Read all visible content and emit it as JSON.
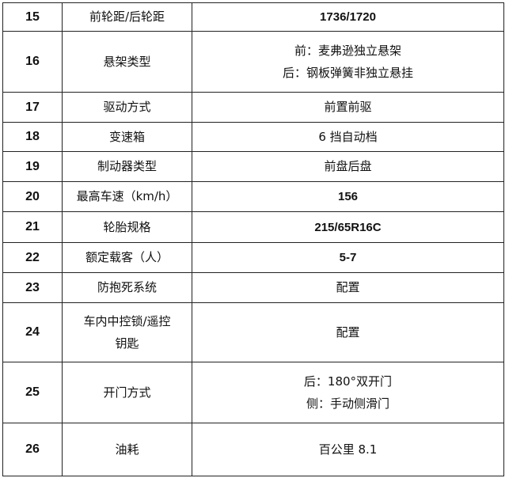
{
  "rows": [
    {
      "no": "15",
      "item": "前轮距/后轮距",
      "value": [
        "1736/1720"
      ],
      "bold": true
    },
    {
      "no": "16",
      "item": "悬架类型",
      "value": [
        "前：麦弗逊独立悬架",
        "后：钢板弹簧非独立悬挂"
      ],
      "bold": false
    },
    {
      "no": "17",
      "item": "驱动方式",
      "value": [
        "前置前驱"
      ],
      "bold": false
    },
    {
      "no": "18",
      "item": "变速箱",
      "value": [
        "6 挡自动档"
      ],
      "bold": false
    },
    {
      "no": "19",
      "item": "制动器类型",
      "value": [
        "前盘后盘"
      ],
      "bold": false
    },
    {
      "no": "20",
      "item": "最高车速（km/h）",
      "value": [
        "156"
      ],
      "bold": true
    },
    {
      "no": "21",
      "item": "轮胎规格",
      "value": [
        "215/65R16C"
      ],
      "bold": true
    },
    {
      "no": "22",
      "item": "额定载客（人）",
      "value": [
        "5-7"
      ],
      "bold": true
    },
    {
      "no": "23",
      "item": "防抱死系统",
      "value": [
        "配置"
      ],
      "bold": false
    },
    {
      "no": "24",
      "item": [
        "车内中控锁/遥控",
        "钥匙"
      ],
      "value": [
        "配置"
      ],
      "bold": false
    },
    {
      "no": "25",
      "item": "开门方式",
      "value": [
        "后：180°双开门",
        "侧：手动侧滑门"
      ],
      "bold": false
    },
    {
      "no": "26",
      "item": "油耗",
      "value": [
        "百公里 8.1"
      ],
      "bold": false
    }
  ]
}
